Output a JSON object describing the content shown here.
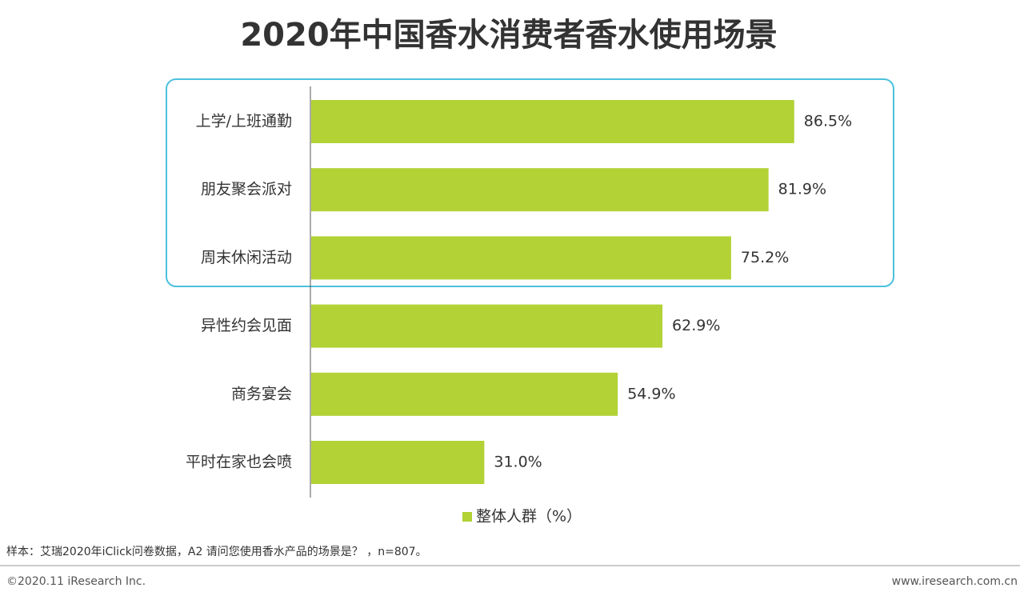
{
  "chart_data": {
    "type": "barh",
    "title": "2020年中国香水消费者香水使用场景",
    "categories": [
      "上学/上班通勤",
      "朋友聚会派对",
      "周末休闲活动",
      "异性约会见面",
      "商务宴会",
      "平时在家也会喷"
    ],
    "series": [
      {
        "name": "整体人群（%）",
        "color": "#b2d235",
        "values": [
          86.5,
          81.9,
          75.2,
          62.9,
          54.9,
          31.0
        ],
        "value_labels": [
          "86.5%",
          "81.9%",
          "75.2%",
          "62.9%",
          "54.9%",
          "31.0%"
        ]
      }
    ],
    "note": "样本：艾瑞2020年iClick问卷数据，A2 请问您使用香水产品的场景是？ ，n=807。"
  },
  "footer": {
    "left": "©2020.11 iResearch Inc.",
    "right": "www.iresearch.com.cn"
  }
}
